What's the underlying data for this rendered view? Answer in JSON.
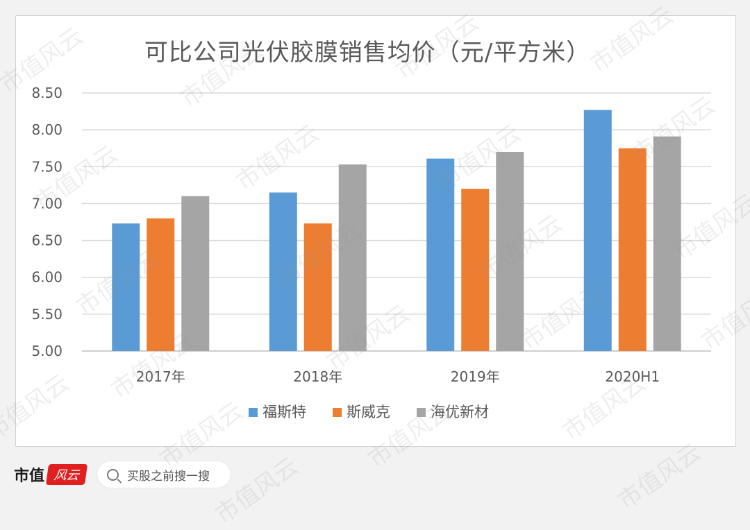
{
  "chart_data": {
    "type": "bar",
    "title": "可比公司光伏胶膜销售均价（元/平方米）",
    "categories": [
      "2017年",
      "2018年",
      "2019年",
      "2020H1"
    ],
    "series": [
      {
        "name": "福斯特",
        "color": "#5b9bd5",
        "values": [
          6.73,
          7.15,
          7.61,
          8.27
        ]
      },
      {
        "name": "斯威克",
        "color": "#ed7d31",
        "values": [
          6.8,
          6.73,
          7.2,
          7.75
        ]
      },
      {
        "name": "海优新材",
        "color": "#a5a5a5",
        "values": [
          7.1,
          7.53,
          7.7,
          7.91
        ]
      }
    ],
    "ylim": [
      5.0,
      8.5
    ],
    "yticks": [
      "5.00",
      "5.50",
      "6.00",
      "6.50",
      "7.00",
      "7.50",
      "8.00",
      "8.50"
    ],
    "grid": true,
    "legend_position": "bottom"
  },
  "footer": {
    "brand": "市值",
    "brand_logo": "风云",
    "search_placeholder": "买股之前搜一搜",
    "watermark": "市值风云"
  }
}
